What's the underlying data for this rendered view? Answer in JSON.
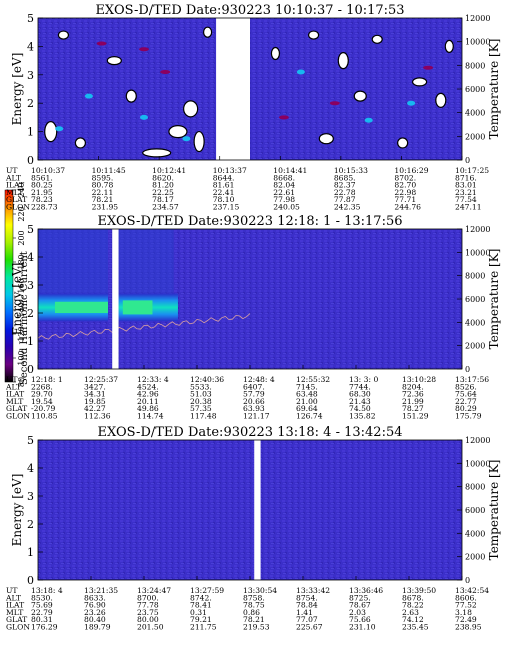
{
  "panels": [
    {
      "title": "EXOS-D/TED   Date:930223  10:10:37 - 10:17:53",
      "ylabel_left": "Energy [eV]",
      "ylabel_right": "Temperature [K]",
      "y_ticks_left": [
        "0",
        "1",
        "2",
        "3",
        "4",
        "5"
      ],
      "y_ticks_right": [
        "0",
        "2000",
        "4000",
        "6000",
        "8000",
        "10000",
        "12000"
      ],
      "gap": [
        0.42,
        0.5
      ],
      "table_labels": [
        "UT",
        "ALT",
        "ILAT",
        "MLT",
        "GLAT",
        "GLON"
      ],
      "columns": [
        [
          "10:10:37",
          "8561.",
          "80.25",
          "21.95",
          "78.23",
          "228.73"
        ],
        [
          "10:11:45",
          "8595.",
          "80.78",
          "22.11",
          "78.21",
          "231.95"
        ],
        [
          "10:12:41",
          "8620.",
          "81.20",
          "22.25",
          "78.17",
          "234.57"
        ],
        [
          "10:13:37",
          "8644.",
          "81.61",
          "22.41",
          "78.10",
          "237.15"
        ],
        [
          "10:14:41",
          "8668.",
          "82.04",
          "22.61",
          "77.98",
          "240.05"
        ],
        [
          "10:15:33",
          "8685.",
          "82.37",
          "22.78",
          "77.87",
          "242.35"
        ],
        [
          "10:16:29",
          "8702.",
          "82.70",
          "22.98",
          "77.71",
          "244.76"
        ],
        [
          "10:17:25",
          "8716.",
          "83.01",
          "23.21",
          "77.54",
          "247.11"
        ]
      ]
    },
    {
      "title": "EXOS-D/TED   Date:930223  12:18: 1 - 13:17:56",
      "ylabel_left": "Energy [eV]",
      "ylabel_right": "Temperature [K]",
      "y_ticks_left": [
        "0",
        "1",
        "2",
        "3",
        "4",
        "5"
      ],
      "y_ticks_right": [
        "0",
        "2000",
        "4000",
        "6000",
        "8000",
        "10000",
        "12000"
      ],
      "gap": [
        0.175,
        0.19
      ],
      "table_labels": [
        "UT",
        "ALT",
        "ILAT",
        "MLT",
        "GLAT",
        "GLON"
      ],
      "columns": [
        [
          "12:18: 1",
          "2268.",
          "29.70",
          "19.54",
          "-20.79",
          "110.85"
        ],
        [
          "12:25:37",
          "3427.",
          "34.31",
          "19.85",
          "42.27",
          "112.36"
        ],
        [
          "12:33: 4",
          "4524.",
          "42.96",
          "20.11",
          "49.86",
          "114.74"
        ],
        [
          "12:40:36",
          "5533.",
          "51.03",
          "20.38",
          "57.35",
          "117.48"
        ],
        [
          "12:48: 4",
          "6407.",
          "57.79",
          "20.66",
          "63.93",
          "121.17"
        ],
        [
          "12:55:32",
          "7145.",
          "63.48",
          "21.00",
          "69.64",
          "126.74"
        ],
        [
          "13: 3: 0",
          "7744.",
          "68.30",
          "21.43",
          "74.50",
          "135.82"
        ],
        [
          "13:10:28",
          "8204.",
          "72.36",
          "21.99",
          "78.27",
          "151.29"
        ],
        [
          "13:17:56",
          "8526.",
          "75.64",
          "22.77",
          "80.29",
          "175.79"
        ]
      ]
    },
    {
      "title": "EXOS-D/TED   Date:930223  13:18: 4 - 13:42:54",
      "ylabel_left": "Energy [eV]",
      "ylabel_right": "Temperature [K]",
      "y_ticks_left": [
        "0",
        "1",
        "2",
        "3",
        "4",
        "5"
      ],
      "y_ticks_right": [
        "0",
        "2000",
        "4000",
        "6000",
        "8000",
        "10000",
        "12000"
      ],
      "gap": [
        0.51,
        0.525
      ],
      "table_labels": [
        "UT",
        "ALT",
        "ILAT",
        "MLT",
        "GLAT",
        "GLON"
      ],
      "columns": [
        [
          "13:18: 4",
          "8530.",
          "75.69",
          "22.79",
          "80.31",
          "176.29"
        ],
        [
          "13:21:35",
          "8633.",
          "76.90",
          "23.26",
          "80.40",
          "189.79"
        ],
        [
          "13:24:47",
          "8700.",
          "77.78",
          "23.75",
          "80.00",
          "201.50"
        ],
        [
          "13:27:59",
          "8742.",
          "78.41",
          "0.31",
          "79.21",
          "211.75"
        ],
        [
          "13:30:54",
          "8758.",
          "78.75",
          "0.86",
          "78.21",
          "219.53"
        ],
        [
          "13:33:42",
          "8754.",
          "78.84",
          "1.41",
          "77.07",
          "225.67"
        ],
        [
          "13:36:46",
          "8725.",
          "78.67",
          "2.03",
          "75.66",
          "231.10"
        ],
        [
          "13:39:50",
          "8678.",
          "78.22",
          "2.63",
          "74.12",
          "235.45"
        ],
        [
          "13:42:54",
          "8606.",
          "77.52",
          "3.18",
          "72.49",
          "238.95"
        ]
      ]
    }
  ],
  "colorbar": {
    "label": "Second Harmonic Current",
    "ticks": [
      "80",
      "100",
      "120",
      "140",
      "160",
      "180",
      "200",
      "220",
      "240"
    ],
    "colors": [
      "#000000",
      "#6a0080",
      "#2a00b0",
      "#0018e0",
      "#0070ff",
      "#00c8e8",
      "#00e8a0",
      "#20e000",
      "#a8f000",
      "#ffff00",
      "#ff9000",
      "#ff1000"
    ]
  },
  "chart_data": [
    {
      "type": "heatmap",
      "title": "EXOS-D/TED   Date:930223  10:10:37 - 10:17:53",
      "xlabel": "UT",
      "ylabel": "Energy [eV]",
      "y2label": "Temperature [K]",
      "ylim": [
        0,
        5
      ],
      "y2lim": [
        0,
        12000
      ],
      "x_ticks": [
        "10:10:37",
        "10:11:45",
        "10:12:41",
        "10:13:37",
        "10:14:41",
        "10:15:33",
        "10:16:29",
        "10:17:25"
      ],
      "color_range": [
        80,
        240
      ],
      "data_gap": [
        "10:13:37",
        "10:14:41"
      ]
    },
    {
      "type": "heatmap",
      "title": "EXOS-D/TED   Date:930223  12:18: 1 - 13:17:56",
      "xlabel": "UT",
      "ylabel": "Energy [eV]",
      "y2label": "Temperature [K]",
      "ylim": [
        0,
        5
      ],
      "y2lim": [
        0,
        12000
      ],
      "x_ticks": [
        "12:18: 1",
        "12:25:37",
        "12:33: 4",
        "12:40:36",
        "12:48: 4",
        "12:55:32",
        "13: 3: 0",
        "13:10:28",
        "13:17:56"
      ],
      "color_range": [
        80,
        240
      ],
      "enhanced_band_ev": [
        1.8,
        2.6
      ],
      "enhanced_band_time": [
        "12:18: 1",
        "12:40:36"
      ]
    },
    {
      "type": "heatmap",
      "title": "EXOS-D/TED   Date:930223  13:18: 4 - 13:42:54",
      "xlabel": "UT",
      "ylabel": "Energy [eV]",
      "y2label": "Temperature [K]",
      "ylim": [
        0,
        5
      ],
      "y2lim": [
        0,
        12000
      ],
      "x_ticks": [
        "13:18: 4",
        "13:21:35",
        "13:24:47",
        "13:27:59",
        "13:30:54",
        "13:33:42",
        "13:36:46",
        "13:39:50",
        "13:42:54"
      ],
      "color_range": [
        80,
        240
      ]
    }
  ]
}
